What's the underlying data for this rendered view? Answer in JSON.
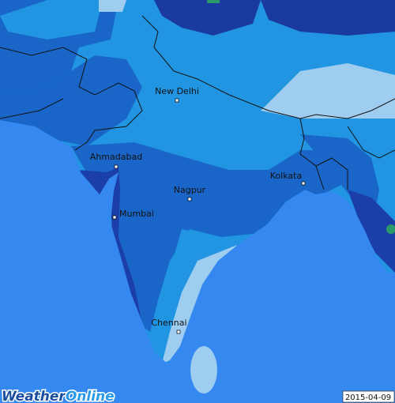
{
  "cities": [
    {
      "label": "New Delhi"
    },
    {
      "label": "Ahmadabad"
    },
    {
      "label": "Nagpur"
    },
    {
      "label": "Kolkata"
    },
    {
      "label": "Mumbai"
    },
    {
      "label": "Chennai"
    }
  ],
  "logo": {
    "part1": "Weather",
    "part2": "Online"
  },
  "date": "2015-04-09"
}
